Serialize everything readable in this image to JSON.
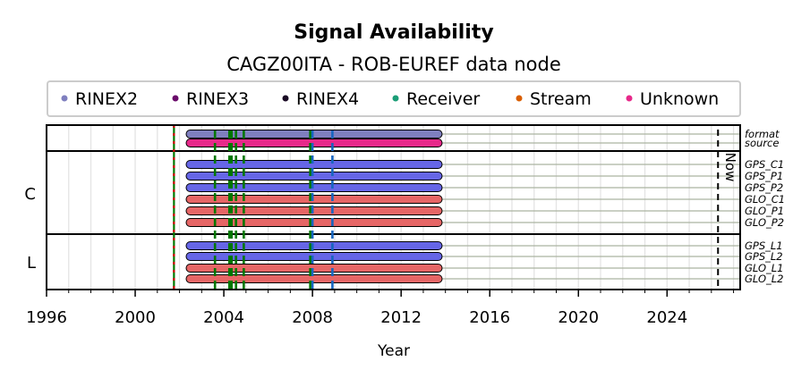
{
  "chart_data": {
    "type": "timeline",
    "title": "Signal Availability",
    "subtitle": "CAGZ00ITA - ROB-EUREF data node",
    "xlabel": "Year",
    "xlim": [
      1996,
      2027.3
    ],
    "xticks": [
      1996,
      2000,
      2004,
      2008,
      2012,
      2016,
      2020,
      2024
    ],
    "legend": {
      "placement": "top",
      "entries": [
        {
          "label": "RINEX2",
          "color": "#7f7fbf"
        },
        {
          "label": "RINEX3",
          "color": "#6a0a6a"
        },
        {
          "label": "RINEX4",
          "color": "#1a0a24"
        },
        {
          "label": "Receiver",
          "color": "#1b9e77"
        },
        {
          "label": "Stream",
          "color": "#d95f02"
        },
        {
          "label": "Unknown",
          "color": "#e7298a"
        }
      ]
    },
    "groups": [
      {
        "label": "",
        "rows": [
          {
            "name": "format",
            "start": 2002.3,
            "end": 2013.85,
            "color": "#7f7fbf"
          },
          {
            "name": "source",
            "start": 2002.3,
            "end": 2013.85,
            "color": "#e7298a"
          }
        ]
      },
      {
        "label": "C",
        "rows": [
          {
            "name": "GPS_C1",
            "start": 2002.3,
            "end": 2013.85,
            "color": "#6666e6"
          },
          {
            "name": "GPS_P1",
            "start": 2002.3,
            "end": 2013.85,
            "color": "#6666e6"
          },
          {
            "name": "GPS_P2",
            "start": 2002.3,
            "end": 2013.85,
            "color": "#6666e6"
          },
          {
            "name": "GLO_C1",
            "start": 2002.3,
            "end": 2013.85,
            "color": "#e66666"
          },
          {
            "name": "GLO_P1",
            "start": 2002.3,
            "end": 2013.85,
            "color": "#e66666"
          },
          {
            "name": "GLO_P2",
            "start": 2002.3,
            "end": 2013.85,
            "color": "#e66666"
          }
        ]
      },
      {
        "label": "L",
        "rows": [
          {
            "name": "GPS_L1",
            "start": 2002.3,
            "end": 2013.85,
            "color": "#6666e6"
          },
          {
            "name": "GPS_L2",
            "start": 2002.3,
            "end": 2013.85,
            "color": "#6666e6"
          },
          {
            "name": "GLO_L1",
            "start": 2002.3,
            "end": 2013.85,
            "color": "#e66666"
          },
          {
            "name": "GLO_L2",
            "start": 2002.3,
            "end": 2013.85,
            "color": "#e66666"
          }
        ]
      }
    ],
    "events": [
      {
        "x": 2001.75,
        "color": "#cc0000",
        "style": "red-green"
      },
      {
        "x": 2003.6,
        "color": "#007700"
      },
      {
        "x": 2004.25,
        "color": "#007700"
      },
      {
        "x": 2004.35,
        "color": "#007700"
      },
      {
        "x": 2004.55,
        "color": "#007700"
      },
      {
        "x": 2004.9,
        "color": "#007700"
      },
      {
        "x": 2007.9,
        "color": "#007700"
      },
      {
        "x": 2008.0,
        "color": "#1565c0"
      },
      {
        "x": 2008.9,
        "color": "#1565c0"
      }
    ],
    "now": {
      "x": 2026.3,
      "label": "Now"
    }
  }
}
